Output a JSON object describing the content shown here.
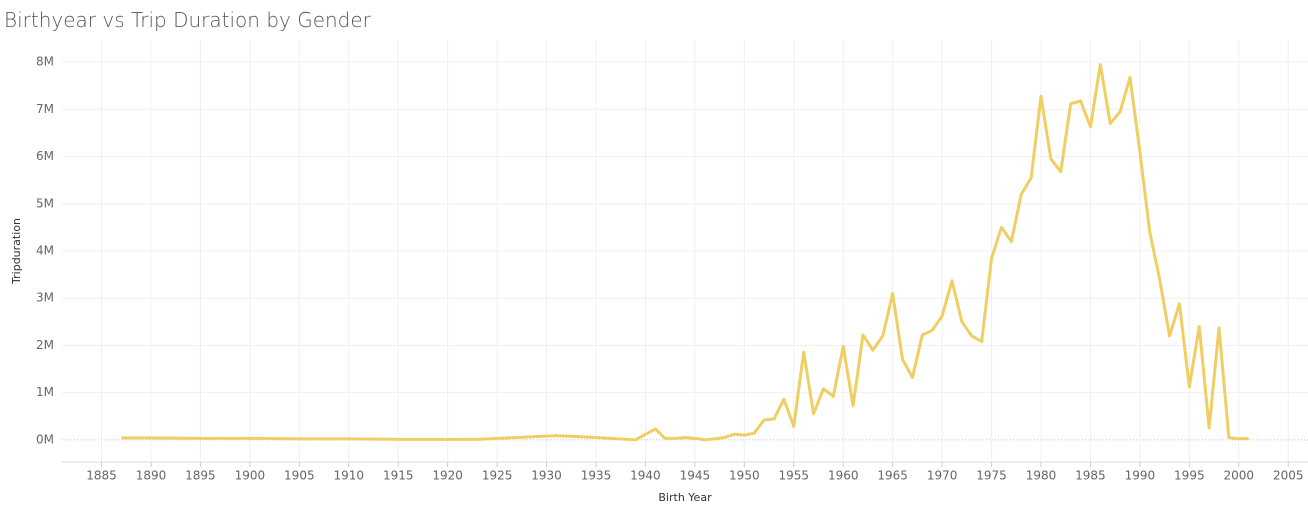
{
  "chart_data": {
    "type": "line",
    "title": "Birthyear vs Trip Duration by Gender",
    "x_label": "Birth Year",
    "y_label": "Tripduration",
    "x": [
      1887,
      1890,
      1895,
      1900,
      1905,
      1910,
      1915,
      1920,
      1923,
      1927,
      1931,
      1935,
      1939,
      1941,
      1942,
      1943,
      1944,
      1945,
      1946,
      1947,
      1948,
      1949,
      1950,
      1951,
      1952,
      1953,
      1954,
      1955,
      1956,
      1957,
      1958,
      1959,
      1960,
      1961,
      1962,
      1963,
      1964,
      1965,
      1966,
      1967,
      1968,
      1969,
      1970,
      1971,
      1972,
      1973,
      1974,
      1975,
      1976,
      1977,
      1978,
      1979,
      1980,
      1981,
      1982,
      1983,
      1984,
      1985,
      1986,
      1987,
      1988,
      1989,
      1990,
      1991,
      1992,
      1993,
      1994,
      1995,
      1996,
      1997,
      1998,
      1999,
      2000,
      2001
    ],
    "series": [
      {
        "name": "Tripduration",
        "color": "#efcf64",
        "values": [
          40000,
          40000,
          30000,
          30000,
          20000,
          20000,
          10000,
          10000,
          10000,
          50000,
          90000,
          50000,
          0,
          230000,
          30000,
          30000,
          50000,
          30000,
          0,
          20000,
          50000,
          120000,
          100000,
          140000,
          420000,
          440000,
          860000,
          280000,
          1860000,
          550000,
          1080000,
          920000,
          1980000,
          720000,
          2220000,
          1900000,
          2200000,
          3100000,
          1700000,
          1320000,
          2220000,
          2320000,
          2620000,
          3370000,
          2500000,
          2200000,
          2080000,
          3850000,
          4500000,
          4200000,
          5200000,
          5550000,
          7280000,
          5950000,
          5680000,
          7120000,
          7180000,
          6630000,
          7950000,
          6700000,
          6950000,
          7680000,
          6100000,
          4400000,
          3400000,
          2200000,
          2880000,
          1120000,
          2400000,
          250000,
          2370000,
          50000,
          20000,
          30000
        ]
      }
    ],
    "xlim": [
      1881,
      2007
    ],
    "xticks": [
      1885,
      1890,
      1895,
      1900,
      1905,
      1910,
      1915,
      1920,
      1925,
      1930,
      1935,
      1940,
      1945,
      1950,
      1955,
      1960,
      1965,
      1970,
      1975,
      1980,
      1985,
      1990,
      1995,
      2000,
      2005
    ],
    "ylim": [
      -470000,
      8470000
    ],
    "yticks": [
      {
        "value": 0,
        "label": "0M"
      },
      {
        "value": 1000000,
        "label": "1M"
      },
      {
        "value": 2000000,
        "label": "2M"
      },
      {
        "value": 3000000,
        "label": "3M"
      },
      {
        "value": 4000000,
        "label": "4M"
      },
      {
        "value": 5000000,
        "label": "5M"
      },
      {
        "value": 6000000,
        "label": "6M"
      },
      {
        "value": 7000000,
        "label": "7M"
      },
      {
        "value": 8000000,
        "label": "8M"
      }
    ],
    "grid": true
  }
}
